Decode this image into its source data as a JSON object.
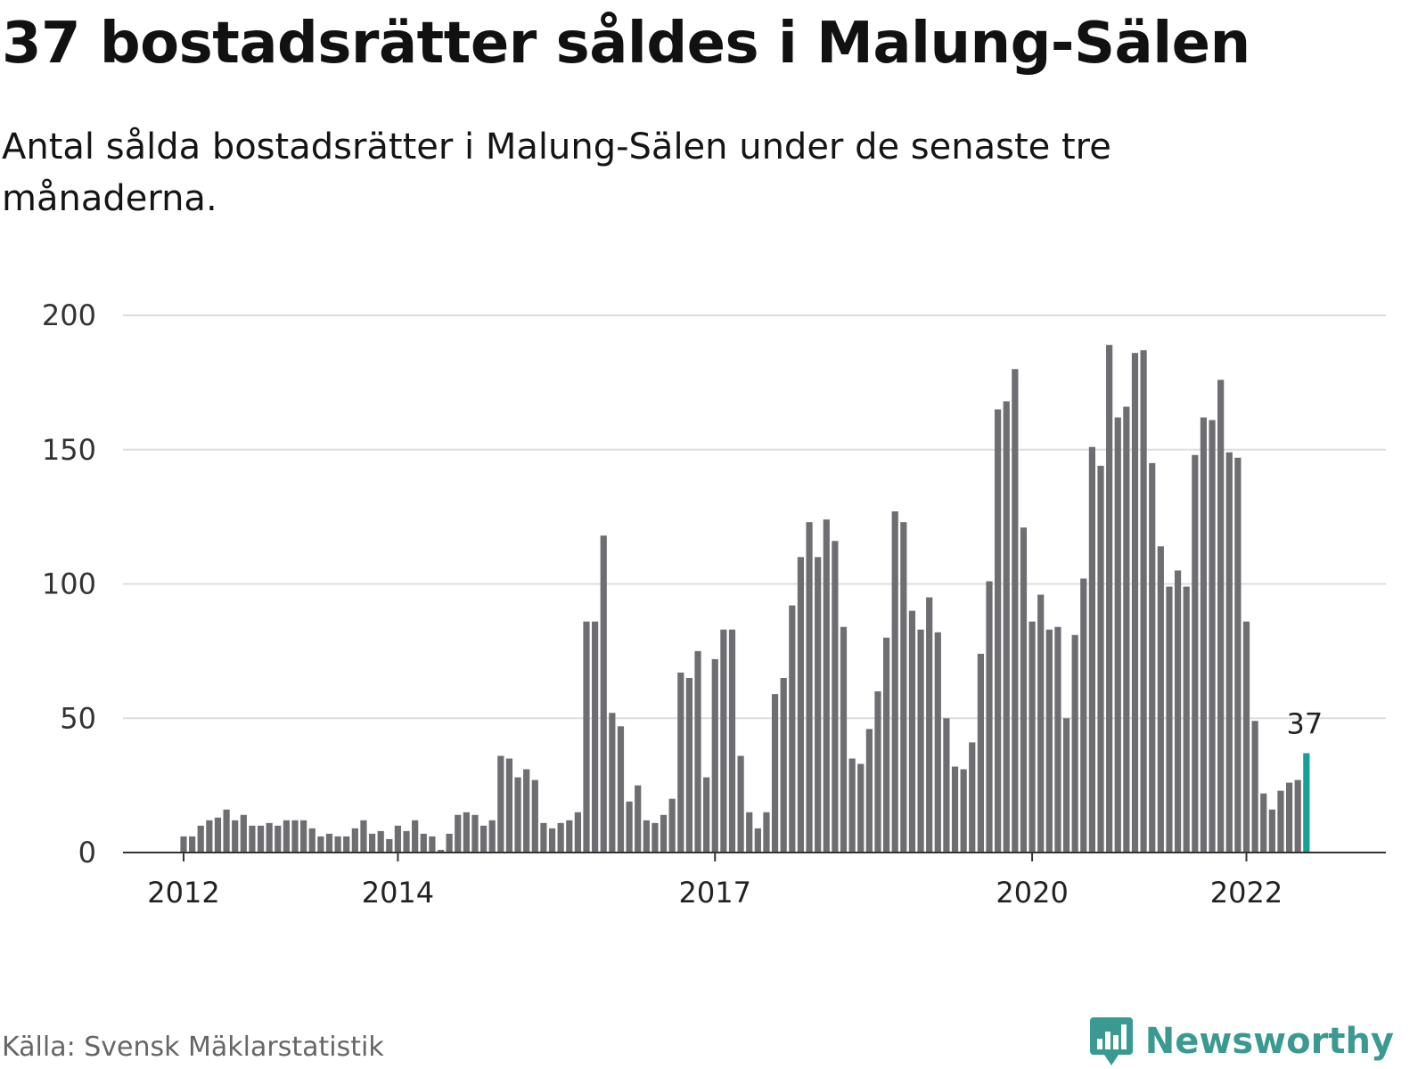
{
  "title": "37 bostadsrätter såldes i Malung-Sälen",
  "subtitle": "Antal sålda bostadsrätter i Malung-Sälen under de senaste tre månaderna.",
  "source": "Källa: Svensk Mäklarstatistik",
  "brand": {
    "name": "Newsworthy",
    "icon": "newsworthy-logo-icon",
    "color": "#3a9a91"
  },
  "colors": {
    "bar": "#6e6d72",
    "highlight": "#16a196",
    "grid": "#dddddd",
    "axis": "#333333"
  },
  "chart_data": {
    "type": "bar",
    "title": "",
    "xlabel": "",
    "ylabel": "",
    "ylim": [
      0,
      200
    ],
    "yticks": [
      0,
      50,
      100,
      150,
      200
    ],
    "xtick_labels": [
      {
        "label": "2012",
        "index": 0
      },
      {
        "label": "2014",
        "index": 25
      },
      {
        "label": "2017",
        "index": 62
      },
      {
        "label": "2020",
        "index": 99
      },
      {
        "label": "2022",
        "index": 124
      }
    ],
    "highlight_label": "37",
    "grid": true,
    "values": [
      6,
      6,
      10,
      12,
      13,
      16,
      12,
      14,
      10,
      10,
      11,
      10,
      12,
      12,
      12,
      9,
      6,
      7,
      6,
      6,
      9,
      12,
      7,
      8,
      5,
      10,
      8,
      12,
      7,
      6,
      1,
      7,
      14,
      15,
      14,
      10,
      12,
      36,
      35,
      28,
      31,
      27,
      11,
      9,
      11,
      12,
      15,
      86,
      86,
      118,
      52,
      47,
      19,
      25,
      12,
      11,
      14,
      20,
      67,
      65,
      75,
      28,
      72,
      83,
      83,
      36,
      15,
      9,
      15,
      59,
      65,
      92,
      110,
      123,
      110,
      124,
      116,
      84,
      35,
      33,
      46,
      60,
      80,
      127,
      123,
      90,
      83,
      95,
      82,
      50,
      32,
      31,
      41,
      74,
      101,
      165,
      168,
      180,
      121,
      86,
      96,
      83,
      84,
      50,
      81,
      102,
      151,
      144,
      189,
      162,
      166,
      186,
      187,
      145,
      114,
      99,
      105,
      99,
      148,
      162,
      161,
      176,
      149,
      147,
      86,
      49,
      22,
      16,
      23,
      26,
      27,
      37
    ]
  }
}
